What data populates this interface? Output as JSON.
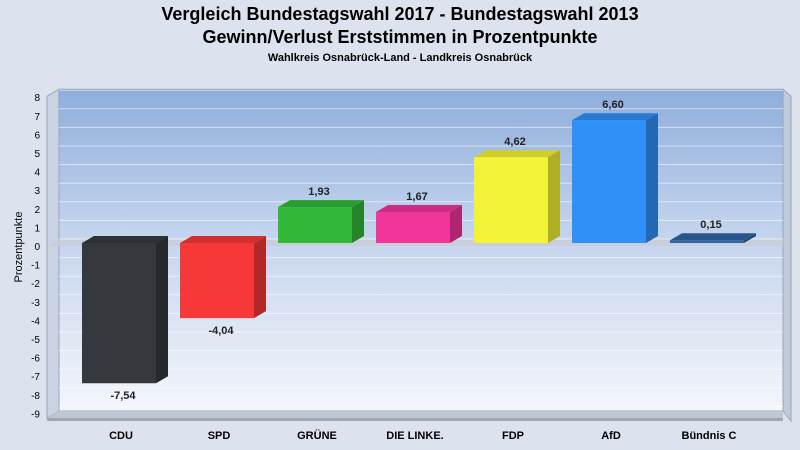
{
  "chart_data": {
    "type": "bar",
    "title": "Vergleich Bundestagswahl 2017 - Bundestagswahl 2013",
    "subtitle_main": "Gewinn/Verlust Erststimmen in Prozentpunkte",
    "subtitle": "Wahlkreis Osnabrück-Land - Landkreis Osnabrück",
    "ylabel": "Prozentpunkte",
    "xlabel": "",
    "ylim": [
      -9,
      8
    ],
    "yticks": [
      8,
      7,
      6,
      5,
      4,
      3,
      2,
      1,
      0,
      -1,
      -2,
      -3,
      -4,
      -5,
      -6,
      -7,
      -8,
      -9
    ],
    "grid": true,
    "categories": [
      "CDU",
      "SPD",
      "GRÜNE",
      "DIE LINKE.",
      "FDP",
      "AfD",
      "Bündnis C"
    ],
    "values": [
      -7.54,
      -4.04,
      1.93,
      1.67,
      4.62,
      6.6,
      0.15
    ],
    "value_labels": [
      "-7,54",
      "-4,04",
      "1,93",
      "1,67",
      "4,62",
      "6,60",
      "0,15"
    ],
    "colors": [
      "#35383d",
      "#f73838",
      "#33b839",
      "#f0359b",
      "#f2f236",
      "#2f90f8",
      "#2f64a4"
    ]
  }
}
